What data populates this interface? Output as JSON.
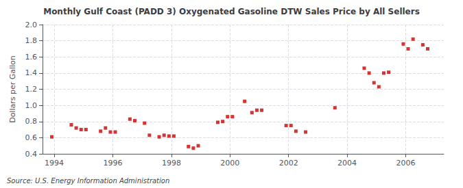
{
  "chart_data": {
    "type": "scatter",
    "title": "Monthly Gulf Coast (PADD 3) Oxygenated Gasoline DTW Sales Price by All Sellers",
    "ylabel": "Dollars per Gallon",
    "source": "Source: U.S. Energy Information Administration",
    "color": "#cc0000",
    "marker": "square",
    "grid": true,
    "xlim": [
      1993.6,
      2007.3
    ],
    "xticks": [
      1994,
      1996,
      1998,
      2000,
      2002,
      2004,
      2006
    ],
    "ylim": [
      0.4,
      2.0
    ],
    "yticks": [
      0.4,
      0.6,
      0.8,
      {
        "value": 1.0,
        "label": "1.0"
      },
      1.2,
      1.4,
      1.6,
      1.8,
      {
        "value": 2.0,
        "label": "2.0"
      }
    ],
    "x": [
      1993.917,
      1994.583,
      1994.75,
      1994.917,
      1995.083,
      1995.583,
      1995.75,
      1995.917,
      1996.083,
      1996.583,
      1996.75,
      1997.083,
      1997.25,
      1997.583,
      1997.75,
      1997.917,
      1998.083,
      1998.583,
      1998.75,
      1998.917,
      1999.583,
      1999.75,
      1999.917,
      2000.083,
      2000.5,
      2000.75,
      2000.917,
      2001.083,
      2001.917,
      2002.083,
      2002.25,
      2002.583,
      2003.583,
      2004.583,
      2004.75,
      2004.917,
      2005.083,
      2005.25,
      2005.417,
      2005.917,
      2006.083,
      2006.25,
      2006.583,
      2006.75
    ],
    "values": [
      0.61,
      0.76,
      0.72,
      0.7,
      0.7,
      0.68,
      0.72,
      0.67,
      0.67,
      0.83,
      0.81,
      0.78,
      0.63,
      0.61,
      0.63,
      0.62,
      0.62,
      0.49,
      0.47,
      0.5,
      0.79,
      0.8,
      0.86,
      0.86,
      1.05,
      0.91,
      0.94,
      0.94,
      0.75,
      0.75,
      0.68,
      0.67,
      0.97,
      1.46,
      1.4,
      1.28,
      1.23,
      1.4,
      1.41,
      1.76,
      1.7,
      1.82,
      1.75,
      1.7
    ]
  }
}
